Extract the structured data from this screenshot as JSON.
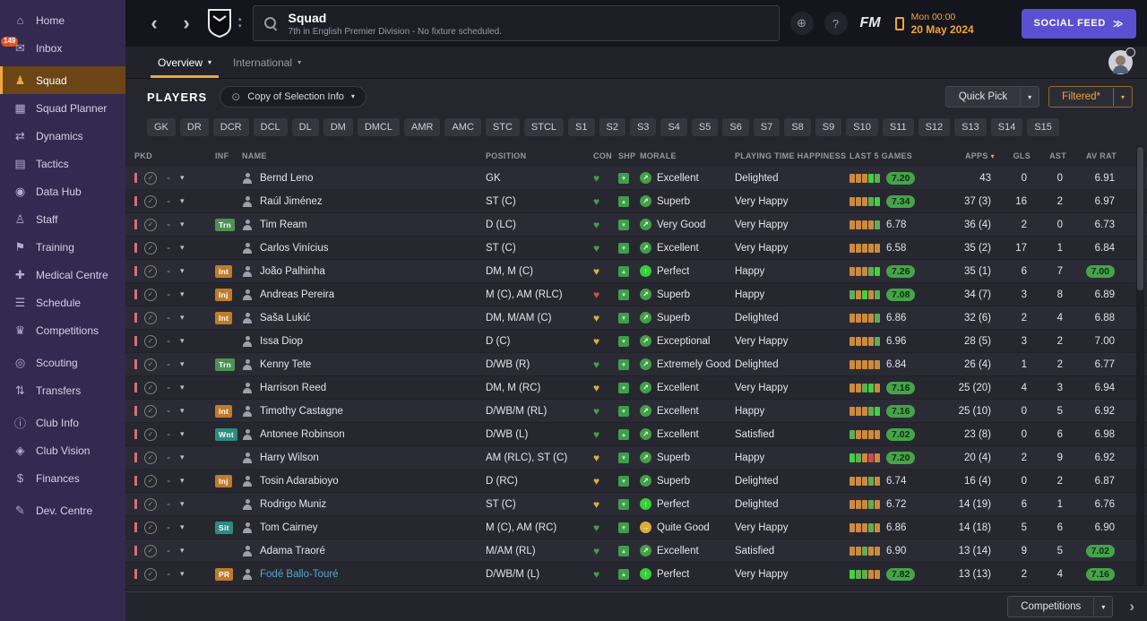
{
  "colors": {
    "accent_orange": "#F0A63C",
    "purple_button": "#5B50D2",
    "green_positive": "#43A047",
    "sidebar_bg": "#332A52",
    "topbar_bg": "#15151D",
    "content_bg": "#26262F",
    "badge_orange": "#BF7C2A",
    "badge_teal": "#2E8B80",
    "badge_green": "#4D9154",
    "condition_red": "#D8503E",
    "condition_yellow": "#D7B13C"
  },
  "sidebar": {
    "items": [
      {
        "label": "Home",
        "icon": "home-icon",
        "glyph": "⌂"
      },
      {
        "label": "Inbox",
        "icon": "inbox-icon",
        "glyph": "✉",
        "badge": "149"
      },
      {
        "label": "Squad",
        "icon": "squad-shirt-icon",
        "glyph": "♟",
        "active": true,
        "gap": true
      },
      {
        "label": "Squad Planner",
        "icon": "squad-planner-icon",
        "glyph": "▦"
      },
      {
        "label": "Dynamics",
        "icon": "dynamics-icon",
        "glyph": "⇄"
      },
      {
        "label": "Tactics",
        "icon": "tactics-icon",
        "glyph": "▤"
      },
      {
        "label": "Data Hub",
        "icon": "data-hub-icon",
        "glyph": "◉"
      },
      {
        "label": "Staff",
        "icon": "staff-icon",
        "glyph": "♙"
      },
      {
        "label": "Training",
        "icon": "training-icon",
        "glyph": "⚑"
      },
      {
        "label": "Medical Centre",
        "icon": "medical-centre-icon",
        "glyph": "✚"
      },
      {
        "label": "Schedule",
        "icon": "schedule-icon",
        "glyph": "☰"
      },
      {
        "label": "Competitions",
        "icon": "competitions-icon",
        "glyph": "♛"
      },
      {
        "label": "Scouting",
        "icon": "scouting-icon",
        "glyph": "◎",
        "gap": true
      },
      {
        "label": "Transfers",
        "icon": "transfers-icon",
        "glyph": "⇅"
      },
      {
        "label": "Club Info",
        "icon": "club-info-icon",
        "glyph": "ⓘ",
        "gap": true
      },
      {
        "label": "Club Vision",
        "icon": "club-vision-icon",
        "glyph": "◈"
      },
      {
        "label": "Finances",
        "icon": "finances-icon",
        "glyph": "$"
      },
      {
        "label": "Dev. Centre",
        "icon": "dev-centre-icon",
        "glyph": "✎",
        "gap": true
      }
    ]
  },
  "topbar": {
    "back_icon": "‹",
    "forward_icon": "›",
    "title": "Squad",
    "subtitle": "7th in English Premier Division - No fixture scheduled.",
    "network_icon": "⊕",
    "help_icon": "?",
    "fm_logo": "FM",
    "datetime": {
      "line1": "Mon 00:00",
      "line2": "20 May 2024"
    },
    "social_feed_label": "SOCIAL FEED",
    "social_feed_arrows": "≫"
  },
  "tabs": [
    {
      "label": "Overview",
      "active": true
    },
    {
      "label": "International",
      "active": false
    }
  ],
  "toolbar": {
    "players_label": "PLAYERS",
    "view_selector": "Copy of Selection Info",
    "quick_pick_label": "Quick Pick",
    "filtered_label": "Filtered*"
  },
  "position_filters": [
    "GK",
    "DR",
    "DCR",
    "DCL",
    "DL",
    "DM",
    "DMCL",
    "AMR",
    "AMC",
    "STC",
    "STCL",
    "S1",
    "S2",
    "S3",
    "S4",
    "S5",
    "S6",
    "S7",
    "S8",
    "S9",
    "S10",
    "S11",
    "S12",
    "S13",
    "S14",
    "S15"
  ],
  "table": {
    "columns": [
      {
        "label": "PKD",
        "align": "left"
      },
      {
        "label": "INF",
        "align": "left"
      },
      {
        "label": "NAME",
        "align": "left"
      },
      {
        "label": "POSITION",
        "align": "left"
      },
      {
        "label": "CON",
        "align": "left"
      },
      {
        "label": "SHP",
        "align": "left"
      },
      {
        "label": "MORALE",
        "align": "left"
      },
      {
        "label": "PLAYING TIME HAPPINESS",
        "align": "left"
      },
      {
        "label": "LAST 5 GAMES",
        "align": "left"
      },
      {
        "label": "APPS",
        "align": "right",
        "sort": "desc"
      },
      {
        "label": "GLS",
        "align": "right"
      },
      {
        "label": "AST",
        "align": "right"
      },
      {
        "label": "AV RAT",
        "align": "right"
      }
    ],
    "rows": [
      {
        "badge": null,
        "name": "Bernd Leno",
        "position": "GK",
        "condition": "green",
        "sharpness": "down",
        "morale": "Excellent",
        "morale_level": "green",
        "happiness": "Delighted",
        "form": [
          "o",
          "o",
          "o",
          "G",
          "g"
        ],
        "form_rating": "7.20",
        "form_pill": true,
        "apps": "43",
        "gls": "0",
        "ast": "0",
        "av_rat": "6.91",
        "av_rat_pill": false
      },
      {
        "badge": null,
        "name": "Raúl Jiménez",
        "position": "ST (C)",
        "condition": "green",
        "sharpness": "up",
        "morale": "Superb",
        "morale_level": "green",
        "happiness": "Very Happy",
        "form": [
          "o",
          "o",
          "o",
          "g",
          "G"
        ],
        "form_rating": "7.34",
        "form_pill": true,
        "apps": "37 (3)",
        "gls": "16",
        "ast": "2",
        "av_rat": "6.97",
        "av_rat_pill": false
      },
      {
        "badge": {
          "text": "Trn",
          "type": "green"
        },
        "name": "Tim Ream",
        "position": "D (LC)",
        "condition": "green",
        "sharpness": "down",
        "morale": "Very Good",
        "morale_level": "green",
        "happiness": "Very Happy",
        "form": [
          "o",
          "o",
          "o",
          "o",
          "g"
        ],
        "form_rating": "6.78",
        "form_pill": false,
        "apps": "36 (4)",
        "gls": "2",
        "ast": "0",
        "av_rat": "6.73",
        "av_rat_pill": false
      },
      {
        "badge": null,
        "name": "Carlos Vinícius",
        "position": "ST (C)",
        "condition": "green",
        "sharpness": "down",
        "morale": "Excellent",
        "morale_level": "green",
        "happiness": "Very Happy",
        "form": [
          "o",
          "o",
          "o",
          "o",
          "o"
        ],
        "form_rating": "6.58",
        "form_pill": false,
        "apps": "35 (2)",
        "gls": "17",
        "ast": "1",
        "av_rat": "6.84",
        "av_rat_pill": false
      },
      {
        "badge": {
          "text": "Int",
          "type": "orange"
        },
        "name": "João Palhinha",
        "position": "DM, M (C)",
        "condition": "yellow",
        "sharpness": "up",
        "morale": "Perfect",
        "morale_level": "bright",
        "happiness": "Happy",
        "form": [
          "o",
          "o",
          "o",
          "g",
          "G"
        ],
        "form_rating": "7.26",
        "form_pill": true,
        "apps": "35 (1)",
        "gls": "6",
        "ast": "7",
        "av_rat": "7.00",
        "av_rat_pill": true
      },
      {
        "badge": {
          "text": "Inj",
          "type": "orange"
        },
        "name": "Andreas Pereira",
        "position": "M (C), AM (RLC)",
        "condition": "red",
        "sharpness": "down",
        "morale": "Superb",
        "morale_level": "green",
        "happiness": "Happy",
        "form": [
          "g",
          "o",
          "G",
          "o",
          "g"
        ],
        "form_rating": "7.08",
        "form_pill": true,
        "apps": "34 (7)",
        "gls": "3",
        "ast": "8",
        "av_rat": "6.89",
        "av_rat_pill": false
      },
      {
        "badge": {
          "text": "Int",
          "type": "orange"
        },
        "name": "Saša Lukić",
        "position": "DM, M/AM (C)",
        "condition": "yellow",
        "sharpness": "down",
        "morale": "Superb",
        "morale_level": "green",
        "happiness": "Delighted",
        "form": [
          "o",
          "o",
          "o",
          "o",
          "g"
        ],
        "form_rating": "6.86",
        "form_pill": false,
        "apps": "32 (6)",
        "gls": "2",
        "ast": "4",
        "av_rat": "6.88",
        "av_rat_pill": false
      },
      {
        "badge": null,
        "name": "Issa Diop",
        "position": "D (C)",
        "condition": "yellow",
        "sharpness": "down",
        "morale": "Exceptional",
        "morale_level": "green",
        "happiness": "Very Happy",
        "form": [
          "o",
          "o",
          "o",
          "o",
          "g"
        ],
        "form_rating": "6.96",
        "form_pill": false,
        "apps": "28 (5)",
        "gls": "3",
        "ast": "2",
        "av_rat": "7.00",
        "av_rat_pill": false
      },
      {
        "badge": {
          "text": "Trn",
          "type": "green"
        },
        "name": "Kenny Tete",
        "position": "D/WB (R)",
        "condition": "green",
        "sharpness": "down",
        "morale": "Extremely Good",
        "morale_level": "green",
        "happiness": "Delighted",
        "form": [
          "o",
          "o",
          "o",
          "o",
          "o"
        ],
        "form_rating": "6.84",
        "form_pill": false,
        "apps": "26 (4)",
        "gls": "1",
        "ast": "2",
        "av_rat": "6.77",
        "av_rat_pill": false
      },
      {
        "badge": null,
        "name": "Harrison Reed",
        "position": "DM, M (RC)",
        "condition": "yellow",
        "sharpness": "down",
        "morale": "Excellent",
        "morale_level": "green",
        "happiness": "Very Happy",
        "form": [
          "o",
          "o",
          "g",
          "G",
          "o"
        ],
        "form_rating": "7.16",
        "form_pill": true,
        "apps": "25 (20)",
        "gls": "4",
        "ast": "3",
        "av_rat": "6.94",
        "av_rat_pill": false
      },
      {
        "badge": {
          "text": "Int",
          "type": "orange"
        },
        "name": "Timothy Castagne",
        "position": "D/WB/M (RL)",
        "condition": "green",
        "sharpness": "down",
        "morale": "Excellent",
        "morale_level": "green",
        "happiness": "Happy",
        "form": [
          "o",
          "o",
          "o",
          "g",
          "G"
        ],
        "form_rating": "7.16",
        "form_pill": true,
        "apps": "25 (10)",
        "gls": "0",
        "ast": "5",
        "av_rat": "6.92",
        "av_rat_pill": false
      },
      {
        "badge": {
          "text": "Wnt",
          "type": "teal"
        },
        "name": "Antonee Robinson",
        "position": "D/WB (L)",
        "condition": "green",
        "sharpness": "up",
        "morale": "Excellent",
        "morale_level": "green",
        "happiness": "Satisfied",
        "form": [
          "g",
          "o",
          "o",
          "o",
          "o"
        ],
        "form_rating": "7.02",
        "form_pill": true,
        "apps": "23 (8)",
        "gls": "0",
        "ast": "6",
        "av_rat": "6.98",
        "av_rat_pill": false
      },
      {
        "badge": null,
        "name": "Harry Wilson",
        "position": "AM (RLC), ST (C)",
        "condition": "yellow",
        "sharpness": "down",
        "morale": "Superb",
        "morale_level": "green",
        "happiness": "Happy",
        "form": [
          "G",
          "g",
          "o",
          "r",
          "o"
        ],
        "form_rating": "7.20",
        "form_pill": true,
        "apps": "20 (4)",
        "gls": "2",
        "ast": "9",
        "av_rat": "6.92",
        "av_rat_pill": false
      },
      {
        "badge": {
          "text": "Inj",
          "type": "orange"
        },
        "name": "Tosin Adarabioyo",
        "position": "D (RC)",
        "condition": "yellow",
        "sharpness": "down",
        "morale": "Superb",
        "morale_level": "green",
        "happiness": "Delighted",
        "form": [
          "o",
          "o",
          "o",
          "g",
          "o"
        ],
        "form_rating": "6.74",
        "form_pill": false,
        "apps": "16 (4)",
        "gls": "0",
        "ast": "2",
        "av_rat": "6.87",
        "av_rat_pill": false
      },
      {
        "badge": null,
        "name": "Rodrigo Muniz",
        "position": "ST (C)",
        "condition": "yellow",
        "sharpness": "down",
        "morale": "Perfect",
        "morale_level": "bright",
        "happiness": "Delighted",
        "form": [
          "o",
          "o",
          "o",
          "g",
          "o"
        ],
        "form_rating": "6.72",
        "form_pill": false,
        "apps": "14 (19)",
        "gls": "6",
        "ast": "1",
        "av_rat": "6.76",
        "av_rat_pill": false
      },
      {
        "badge": {
          "text": "Sit",
          "type": "teal"
        },
        "name": "Tom Cairney",
        "position": "M (C), AM (RC)",
        "condition": "green",
        "sharpness": "down",
        "morale": "Quite Good",
        "morale_level": "amber",
        "happiness": "Very Happy",
        "form": [
          "o",
          "o",
          "o",
          "g",
          "o"
        ],
        "form_rating": "6.86",
        "form_pill": false,
        "apps": "14 (18)",
        "gls": "5",
        "ast": "6",
        "av_rat": "6.90",
        "av_rat_pill": false
      },
      {
        "badge": null,
        "name": "Adama Traoré",
        "position": "M/AM (RL)",
        "condition": "green",
        "sharpness": "up",
        "morale": "Excellent",
        "morale_level": "green",
        "happiness": "Satisfied",
        "form": [
          "o",
          "o",
          "g",
          "o",
          "o"
        ],
        "form_rating": "6.90",
        "form_pill": false,
        "apps": "13 (14)",
        "gls": "9",
        "ast": "5",
        "av_rat": "7.02",
        "av_rat_pill": true
      },
      {
        "badge": {
          "text": "PR",
          "type": "orange"
        },
        "name": "Fodé Ballo-Touré",
        "name_color": "#56A8CC",
        "position": "D/WB/M (L)",
        "condition": "green",
        "sharpness": "up",
        "morale": "Perfect",
        "morale_level": "bright",
        "happiness": "Very Happy",
        "form": [
          "G",
          "g",
          "g",
          "o",
          "o"
        ],
        "form_rating": "7.82",
        "form_pill": true,
        "apps": "13 (13)",
        "gls": "2",
        "ast": "4",
        "av_rat": "7.16",
        "av_rat_pill": true
      }
    ]
  },
  "footer": {
    "competitions_label": "Competitions",
    "next_icon": "›"
  }
}
